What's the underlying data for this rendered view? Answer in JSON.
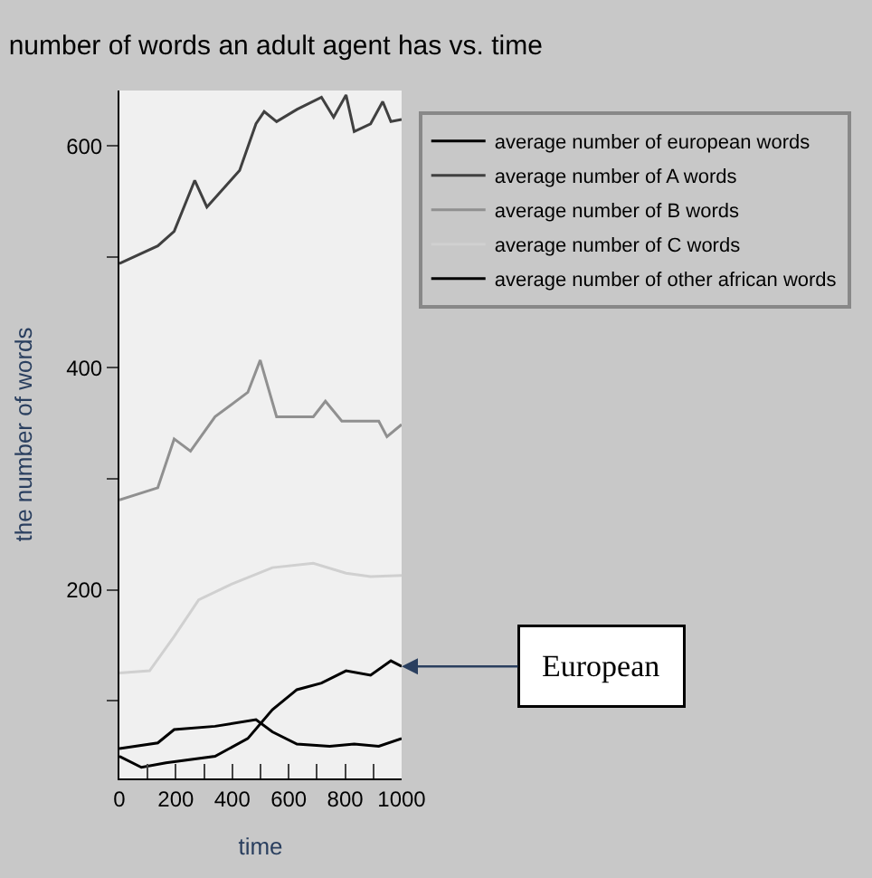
{
  "chart_data": {
    "type": "line",
    "title": "number of words an adult agent has vs. time",
    "xlabel": "time",
    "ylabel": "the number of words",
    "xlim": [
      0,
      1000
    ],
    "xticks": [
      0,
      {
        "value": 100,
        "label": null
      },
      200,
      {
        "value": 300,
        "label": null
      },
      400,
      {
        "value": 500,
        "label": null
      },
      600,
      {
        "value": 700,
        "label": null
      },
      800,
      {
        "value": 900,
        "label": null
      },
      1000
    ],
    "ylim": [
      30,
      650
    ],
    "yticks": [
      {
        "value": 100,
        "label": null
      },
      200,
      {
        "value": 300,
        "label": null
      },
      400,
      {
        "value": 500,
        "label": null
      },
      600
    ],
    "grid": false,
    "legend": "right",
    "line_style": "solid",
    "series": [
      {
        "name": "average number of european words",
        "color": "#000000",
        "x": [
          0,
          78,
          165,
          339,
          455,
          542,
          629,
          716,
          803,
          890,
          962,
          1000
        ],
        "values": [
          50,
          40,
          44,
          50,
          66,
          92,
          110,
          116,
          127,
          123,
          136,
          131
        ]
      },
      {
        "name": "average number of A words",
        "color": "#404040",
        "x": [
          0,
          136,
          194,
          267,
          310,
          426,
          484,
          513,
          557,
          629,
          716,
          759,
          803,
          832,
          890,
          933,
          962,
          1000
        ],
        "values": [
          494,
          510,
          523,
          569,
          545,
          578,
          620,
          631,
          622,
          633,
          644,
          626,
          646,
          613,
          620,
          640,
          622,
          624
        ]
      },
      {
        "name": "average number of B words",
        "color": "#909090",
        "x": [
          0,
          136,
          194,
          252,
          339,
          455,
          499,
          557,
          687,
          730,
          788,
          919,
          948,
          1000
        ],
        "values": [
          281,
          292,
          336,
          325,
          356,
          378,
          407,
          356,
          356,
          370,
          352,
          352,
          338,
          349
        ]
      },
      {
        "name": "average number of C words",
        "color": "#d0d0d0",
        "x": [
          0,
          107,
          194,
          281,
          397,
          542,
          687,
          803,
          890,
          1000
        ],
        "values": [
          125,
          127,
          158,
          191,
          205,
          220,
          224,
          215,
          212,
          213
        ]
      },
      {
        "name": "average number of other african words",
        "color": "#000000",
        "x": [
          0,
          136,
          194,
          339,
          484,
          542,
          629,
          745,
          832,
          919,
          1000
        ],
        "values": [
          57,
          62,
          74,
          77,
          83,
          72,
          61,
          59,
          61,
          59,
          66
        ]
      }
    ],
    "annotations": [
      {
        "text": "European",
        "x": 1000,
        "y": 131
      }
    ]
  }
}
